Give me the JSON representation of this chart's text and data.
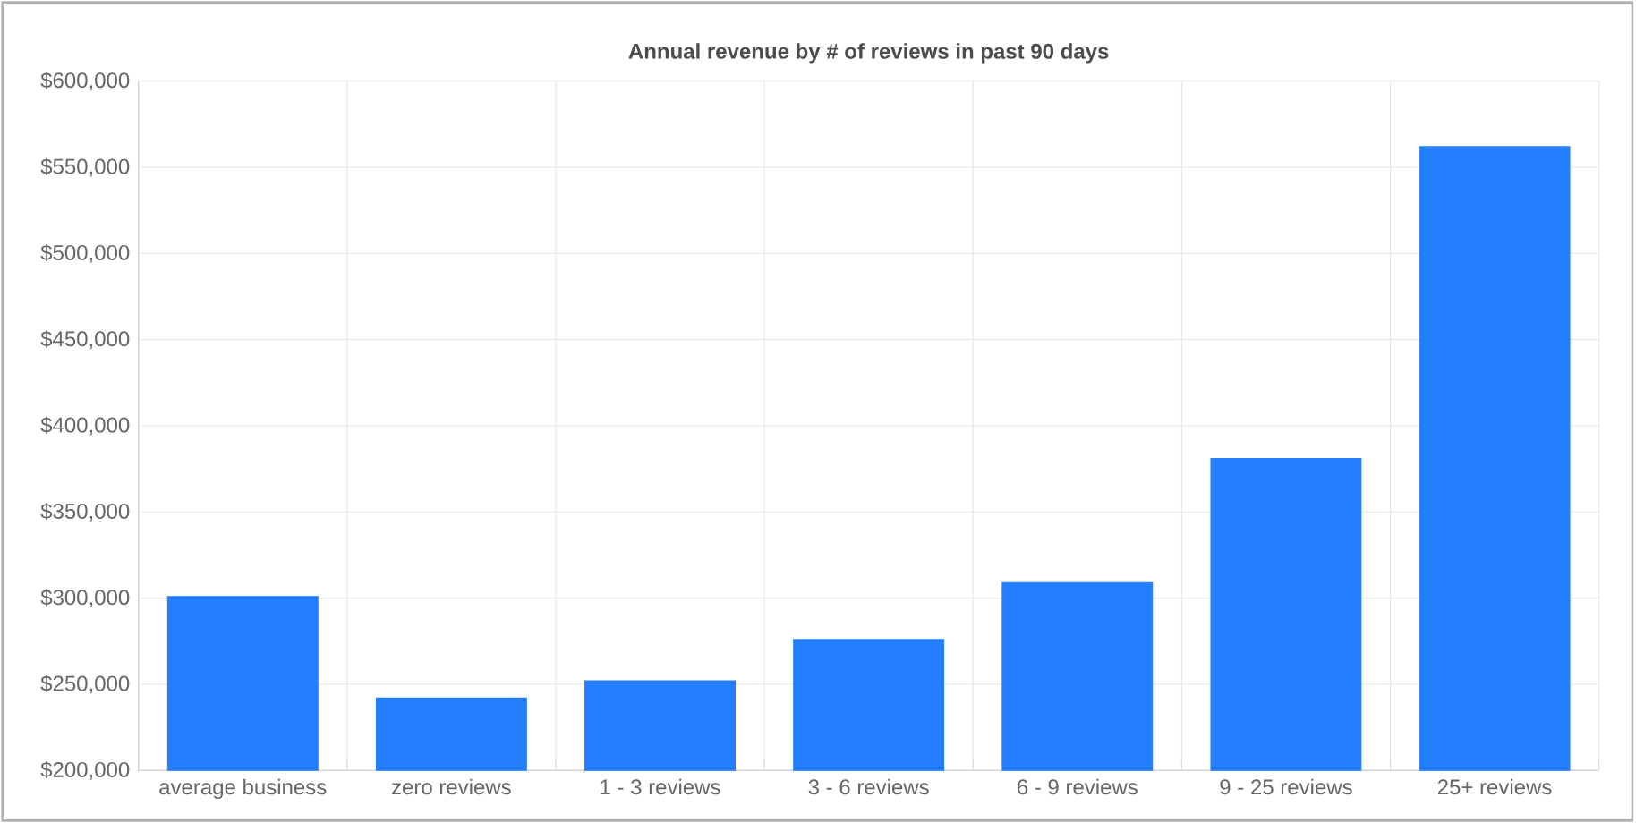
{
  "chart_data": {
    "type": "bar",
    "title": "Annual revenue by # of reviews in past 90 days",
    "categories": [
      "average business",
      "zero reviews",
      "1 - 3 reviews",
      "3 - 6 reviews",
      "6 - 9 reviews",
      "9 - 25 reviews",
      "25+ reviews"
    ],
    "values": [
      301000,
      242000,
      252000,
      276000,
      309000,
      381000,
      562000
    ],
    "color": "#247ffe",
    "ylim": [
      200000,
      600000
    ],
    "yticks": [
      {
        "value": 200000,
        "label": "$200,000"
      },
      {
        "value": 250000,
        "label": "$250,000"
      },
      {
        "value": 300000,
        "label": "$300,000"
      },
      {
        "value": 350000,
        "label": "$350,000"
      },
      {
        "value": 400000,
        "label": "$400,000"
      },
      {
        "value": 450000,
        "label": "$450,000"
      },
      {
        "value": 500000,
        "label": "$500,000"
      },
      {
        "value": 550000,
        "label": "$550,000"
      },
      {
        "value": 600000,
        "label": "$600,000"
      }
    ],
    "grid": true
  }
}
